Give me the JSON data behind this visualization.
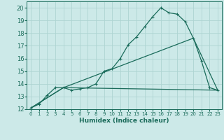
{
  "xlabel": "Humidex (Indice chaleur)",
  "xlim": [
    -0.5,
    23.5
  ],
  "ylim": [
    12,
    20.5
  ],
  "yticks": [
    12,
    13,
    14,
    15,
    16,
    17,
    18,
    19,
    20
  ],
  "xticks": [
    0,
    1,
    2,
    3,
    4,
    5,
    6,
    7,
    8,
    9,
    10,
    11,
    12,
    13,
    14,
    15,
    16,
    17,
    18,
    19,
    20,
    21,
    22,
    23
  ],
  "bg_color": "#cce9e8",
  "grid_color": "#aed4d2",
  "line_color": "#1a6b5a",
  "line1_x": [
    0,
    1,
    2,
    3,
    4,
    5,
    6,
    7,
    8,
    9,
    10,
    11,
    12,
    13,
    14,
    15,
    16,
    17,
    18,
    19,
    20,
    21,
    22,
    23
  ],
  "line1_y": [
    12.1,
    12.4,
    13.1,
    13.7,
    13.7,
    13.5,
    13.6,
    13.7,
    14.0,
    15.0,
    15.2,
    16.0,
    17.1,
    17.7,
    18.5,
    19.3,
    20.0,
    19.6,
    19.5,
    18.9,
    17.6,
    15.8,
    13.7,
    13.5
  ],
  "line2_x": [
    0,
    4,
    20,
    23
  ],
  "line2_y": [
    12.1,
    13.7,
    17.6,
    13.5
  ],
  "line3_x": [
    0,
    4,
    23
  ],
  "line3_y": [
    12.1,
    13.7,
    13.5
  ]
}
